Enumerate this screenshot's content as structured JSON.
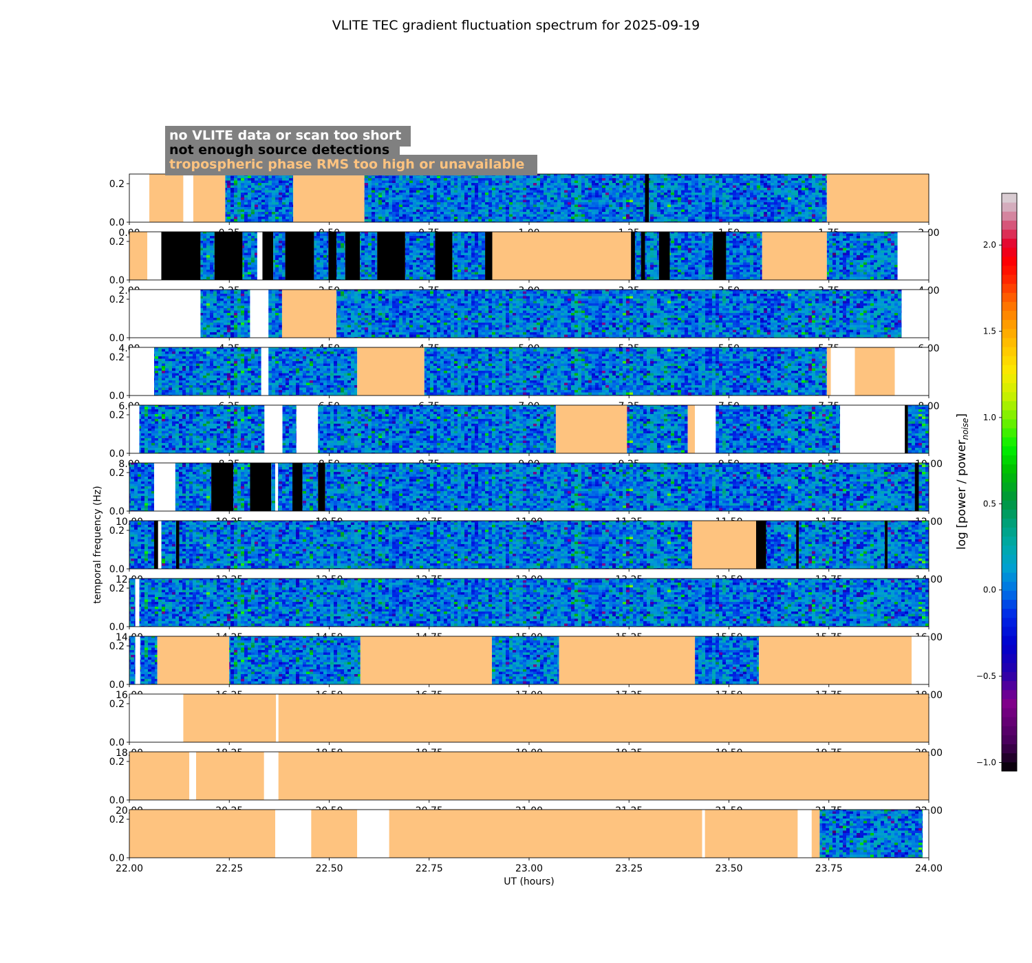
{
  "chart_data": {
    "type": "heatmap",
    "title": "VLITE TEC gradient fluctuation spectrum for 2025-09-19",
    "xlabel": "UT (hours)",
    "ylabel": "temporal frequency (Hz)",
    "y_ticks": [
      "0.0",
      "0.2"
    ],
    "ylim": [
      0,
      0.25
    ],
    "colorbar": {
      "label_main": "log [power / power",
      "label_sub": "noise",
      "label_end": "]",
      "range": [
        -1.05,
        2.3
      ],
      "ticks": [
        -1.0,
        -0.5,
        0.0,
        0.5,
        1.0,
        1.5,
        2.0
      ],
      "tick_labels": [
        "−1.0",
        "−0.5",
        "0.0",
        "0.5",
        "1.0",
        "1.5",
        "2.0"
      ]
    },
    "legend": [
      {
        "text": "no VLITE data or scan too short",
        "text_color": "#ffffff",
        "box_color": "#808080"
      },
      {
        "text": "not enough source detections",
        "text_color": "#000000",
        "box_color": "#808080"
      },
      {
        "text": "tropospheric phase RMS too high or unavailable",
        "text_color": "#fec37f",
        "box_color": "#808080"
      }
    ],
    "mask_colors": {
      "no_data": "#ffffff",
      "few_detections": "#000000",
      "tropo": "#fec37f"
    },
    "panels": [
      {
        "range": [
          0,
          2
        ],
        "tick_labels": [
          "0.00",
          "0.25",
          "0.50",
          "0.75",
          "1.00",
          "1.25",
          "1.50",
          "1.75",
          "2.00"
        ],
        "segments": [
          [
            "white",
            0,
            0.05
          ],
          [
            "tropo",
            0.05,
            0.135
          ],
          [
            "white",
            0.135,
            0.16
          ],
          [
            "tropo",
            0.16,
            0.24
          ],
          [
            "data",
            0.24,
            0.41
          ],
          [
            "tropo",
            0.41,
            0.588
          ],
          [
            "data",
            0.588,
            1.29
          ],
          [
            "black",
            1.29,
            1.3
          ],
          [
            "data",
            1.3,
            1.745
          ],
          [
            "tropo",
            1.745,
            2.0
          ]
        ]
      },
      {
        "range": [
          2,
          4
        ],
        "tick_labels": [
          "2.00",
          "2.25",
          "2.50",
          "2.75",
          "3.00",
          "3.25",
          "3.50",
          "3.75",
          "4.00"
        ],
        "segments": [
          [
            "tropo",
            2.0,
            2.045
          ],
          [
            "white",
            2.045,
            2.08
          ],
          [
            "black",
            2.08,
            2.178
          ],
          [
            "data",
            2.178,
            2.213
          ],
          [
            "black",
            2.213,
            2.283
          ],
          [
            "data",
            2.283,
            2.32
          ],
          [
            "white",
            2.32,
            2.333
          ],
          [
            "black",
            2.333,
            2.36
          ],
          [
            "data",
            2.36,
            2.39
          ],
          [
            "black",
            2.39,
            2.462
          ],
          [
            "data",
            2.462,
            2.498
          ],
          [
            "black",
            2.498,
            2.518
          ],
          [
            "data",
            2.518,
            2.54
          ],
          [
            "black",
            2.54,
            2.577
          ],
          [
            "data",
            2.577,
            2.62
          ],
          [
            "black",
            2.62,
            2.69
          ],
          [
            "data",
            2.69,
            2.765
          ],
          [
            "black",
            2.765,
            2.808
          ],
          [
            "data",
            2.808,
            2.89
          ],
          [
            "black",
            2.89,
            2.908
          ],
          [
            "tropo",
            2.908,
            3.255
          ],
          [
            "black",
            3.255,
            3.265
          ],
          [
            "data",
            3.265,
            3.28
          ],
          [
            "black",
            3.28,
            3.29
          ],
          [
            "data",
            3.29,
            3.325
          ],
          [
            "black",
            3.325,
            3.352
          ],
          [
            "data",
            3.352,
            3.46
          ],
          [
            "black",
            3.46,
            3.493
          ],
          [
            "data",
            3.493,
            3.583
          ],
          [
            "tropo",
            3.583,
            3.745
          ],
          [
            "data",
            3.745,
            3.922
          ],
          [
            "white",
            3.922,
            4.0
          ]
        ]
      },
      {
        "range": [
          4,
          6
        ],
        "tick_labels": [
          "4.00",
          "4.25",
          "4.50",
          "4.75",
          "5.00",
          "5.25",
          "5.50",
          "5.75",
          "6.00"
        ],
        "segments": [
          [
            "white",
            4.0,
            4.178
          ],
          [
            "data",
            4.178,
            4.302
          ],
          [
            "white",
            4.302,
            4.348
          ],
          [
            "data",
            4.348,
            4.382
          ],
          [
            "tropo",
            4.382,
            4.518
          ],
          [
            "data",
            4.518,
            5.932
          ],
          [
            "white",
            5.932,
            6.0
          ]
        ]
      },
      {
        "range": [
          6,
          8
        ],
        "tick_labels": [
          "6.00",
          "6.25",
          "6.50",
          "6.75",
          "7.00",
          "7.25",
          "7.50",
          "7.75",
          "8.00"
        ],
        "segments": [
          [
            "white",
            6.0,
            6.062
          ],
          [
            "data",
            6.062,
            6.33
          ],
          [
            "white",
            6.33,
            6.348
          ],
          [
            "data",
            6.348,
            6.57
          ],
          [
            "tropo",
            6.57,
            6.738
          ],
          [
            "data",
            6.738,
            7.745
          ],
          [
            "tropo",
            7.745,
            7.755
          ],
          [
            "white",
            7.755,
            7.815
          ],
          [
            "tropo",
            7.815,
            7.915
          ],
          [
            "white",
            7.915,
            8.0
          ]
        ]
      },
      {
        "range": [
          8,
          10
        ],
        "tick_labels": [
          "8.00",
          "8.25",
          "8.50",
          "8.75",
          "9.00",
          "9.25",
          "9.50",
          "9.75",
          "10.00"
        ],
        "segments": [
          [
            "white",
            8.0,
            8.025
          ],
          [
            "data",
            8.025,
            8.338
          ],
          [
            "white",
            8.338,
            8.383
          ],
          [
            "data",
            8.383,
            8.418
          ],
          [
            "white",
            8.418,
            8.472
          ],
          [
            "data",
            8.472,
            9.067
          ],
          [
            "tropo",
            9.067,
            9.245
          ],
          [
            "data",
            9.245,
            9.397
          ],
          [
            "tropo",
            9.397,
            9.415
          ],
          [
            "white",
            9.415,
            9.467
          ],
          [
            "data",
            9.467,
            9.778
          ],
          [
            "white",
            9.778,
            9.94
          ],
          [
            "black",
            9.94,
            9.948
          ],
          [
            "data",
            9.948,
            10.0
          ]
        ]
      },
      {
        "range": [
          10,
          12
        ],
        "tick_labels": [
          "10.00",
          "10.25",
          "10.50",
          "10.75",
          "11.00",
          "11.25",
          "11.50",
          "11.75",
          "12.00"
        ],
        "segments": [
          [
            "data",
            10.0,
            10.062
          ],
          [
            "white",
            10.062,
            10.115
          ],
          [
            "data",
            10.115,
            10.205
          ],
          [
            "black",
            10.205,
            10.26
          ],
          [
            "data",
            10.26,
            10.302
          ],
          [
            "black",
            10.302,
            10.355
          ],
          [
            "data",
            10.355,
            10.365
          ],
          [
            "white",
            10.365,
            10.372
          ],
          [
            "data",
            10.372,
            10.408
          ],
          [
            "black",
            10.408,
            10.433
          ],
          [
            "data",
            10.433,
            10.472
          ],
          [
            "black",
            10.472,
            10.49
          ],
          [
            "data",
            10.49,
            11.965
          ],
          [
            "black",
            11.965,
            11.975
          ],
          [
            "data",
            11.975,
            12.0
          ]
        ]
      },
      {
        "range": [
          12,
          14
        ],
        "tick_labels": [
          "12.00",
          "12.25",
          "12.50",
          "12.75",
          "13.00",
          "13.25",
          "13.50",
          "13.75",
          "14.00"
        ],
        "segments": [
          [
            "data",
            12.0,
            12.062
          ],
          [
            "black",
            12.062,
            12.072
          ],
          [
            "white",
            12.072,
            12.08
          ],
          [
            "data",
            12.08,
            12.117
          ],
          [
            "black",
            12.117,
            12.125
          ],
          [
            "data",
            12.125,
            13.408
          ],
          [
            "tropo",
            13.408,
            13.568
          ],
          [
            "black",
            13.568,
            13.593
          ],
          [
            "data",
            13.593,
            13.668
          ],
          [
            "black",
            13.668,
            13.675
          ],
          [
            "data",
            13.675,
            13.89
          ],
          [
            "black",
            13.89,
            13.897
          ],
          [
            "data",
            13.897,
            14.0
          ]
        ]
      },
      {
        "range": [
          14,
          16
        ],
        "tick_labels": [
          "14.00",
          "14.25",
          "14.50",
          "14.75",
          "15.00",
          "15.25",
          "15.50",
          "15.75",
          "16.00"
        ],
        "segments": [
          [
            "data",
            14.0,
            14.015
          ],
          [
            "white",
            14.015,
            14.025
          ],
          [
            "data",
            14.025,
            16.0
          ]
        ]
      },
      {
        "range": [
          16,
          18
        ],
        "tick_labels": [
          "16.00",
          "16.25",
          "16.50",
          "16.75",
          "17.00",
          "17.25",
          "17.50",
          "17.75",
          "18.00"
        ],
        "segments": [
          [
            "data",
            16.0,
            16.015
          ],
          [
            "white",
            16.015,
            16.027
          ],
          [
            "data",
            16.027,
            16.07
          ],
          [
            "tropo",
            16.07,
            16.25
          ],
          [
            "data",
            16.25,
            16.578
          ],
          [
            "tropo",
            16.578,
            16.907
          ],
          [
            "data",
            16.907,
            17.075
          ],
          [
            "tropo",
            17.075,
            17.415
          ],
          [
            "data",
            17.415,
            17.575
          ],
          [
            "tropo",
            17.575,
            17.957
          ],
          [
            "white",
            17.957,
            18.0
          ]
        ]
      },
      {
        "range": [
          18,
          20
        ],
        "tick_labels": [
          "18.00",
          "18.25",
          "18.50",
          "18.75",
          "19.00",
          "19.25",
          "19.50",
          "19.75",
          "20.00"
        ],
        "segments": [
          [
            "white",
            18.0,
            18.135
          ],
          [
            "tropo",
            18.135,
            18.367
          ],
          [
            "white",
            18.367,
            18.373
          ],
          [
            "tropo",
            18.373,
            20.0
          ]
        ]
      },
      {
        "range": [
          20,
          22
        ],
        "tick_labels": [
          "20.00",
          "20.25",
          "20.50",
          "20.75",
          "21.00",
          "21.25",
          "21.50",
          "21.75",
          "22.00"
        ],
        "segments": [
          [
            "tropo",
            20.0,
            20.15
          ],
          [
            "white",
            20.15,
            20.167
          ],
          [
            "tropo",
            20.167,
            20.337
          ],
          [
            "white",
            20.337,
            20.373
          ],
          [
            "tropo",
            20.373,
            22.0
          ]
        ]
      },
      {
        "range": [
          22,
          24
        ],
        "tick_labels": [
          "22.00",
          "22.25",
          "22.50",
          "22.75",
          "23.00",
          "23.25",
          "23.50",
          "23.75",
          "24.00"
        ],
        "segments": [
          [
            "tropo",
            22.0,
            22.365
          ],
          [
            "white",
            22.365,
            22.455
          ],
          [
            "tropo",
            22.455,
            22.57
          ],
          [
            "white",
            22.57,
            22.65
          ],
          [
            "tropo",
            22.65,
            23.433
          ],
          [
            "white",
            23.433,
            23.44
          ],
          [
            "tropo",
            23.44,
            23.672
          ],
          [
            "white",
            23.672,
            23.707
          ],
          [
            "tropo",
            23.707,
            23.727
          ],
          [
            "data",
            23.727,
            23.985
          ],
          [
            "white",
            23.985,
            24.0
          ]
        ]
      }
    ]
  }
}
